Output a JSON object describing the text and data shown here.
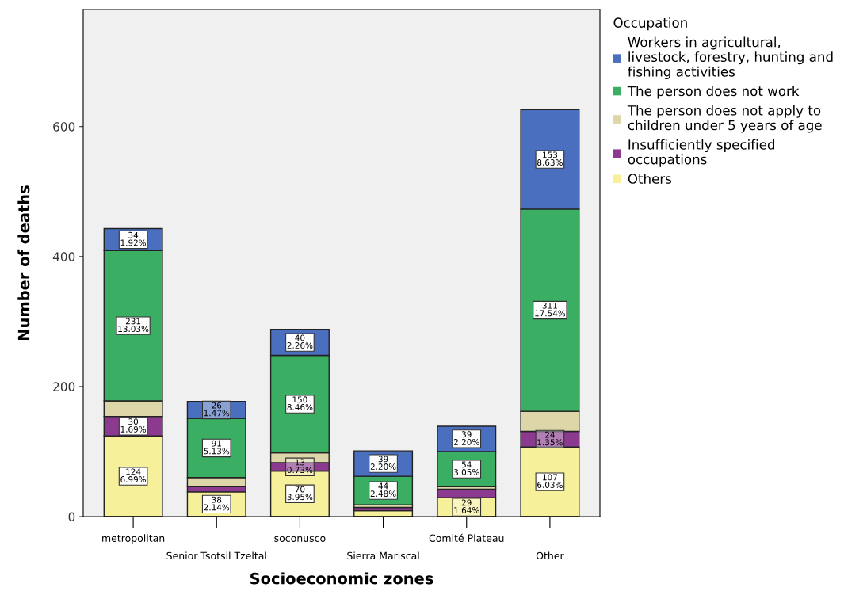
{
  "chart_data": {
    "type": "bar",
    "stacked": true,
    "xlabel": "Socioeconomic zones",
    "ylabel": "Number of deaths",
    "legend_title": "Occupation",
    "legend": "right",
    "categories": [
      "metropolitan",
      "Senior Tsotsil Tzeltal",
      "soconusco",
      "Sierra Mariscal",
      "Comité Plateau",
      "Other"
    ],
    "ylim": [
      0,
      780
    ],
    "yticks": [
      0,
      200,
      400,
      600
    ],
    "grid": false,
    "series": [
      {
        "name": "Others",
        "color": "#f7f09b",
        "values": [
          124,
          38,
          70,
          9,
          29,
          107
        ],
        "value_labels": [
          "124\n6.99%",
          "38\n2.14%",
          "70\n3.95%",
          null,
          "29\n1.64%",
          "107\n6.03%"
        ]
      },
      {
        "name": "Insufficiently specified\noccupations",
        "color": "#8b3a8f",
        "values": [
          30,
          8,
          13,
          5,
          13,
          24
        ],
        "value_labels": [
          "30\n1.69%",
          null,
          "13\n0.73%",
          null,
          null,
          "24\n1.35%"
        ]
      },
      {
        "name": "The person does not apply to\nchildren under 5 years of age",
        "color": "#ddd6a8",
        "values": [
          24,
          14,
          15,
          4,
          4,
          31
        ],
        "value_labels": [
          null,
          null,
          null,
          null,
          null,
          null
        ]
      },
      {
        "name": "The person does not work",
        "color": "#3aae63",
        "values": [
          231,
          91,
          150,
          44,
          54,
          311
        ],
        "value_labels": [
          "231\n13.03%",
          "91\n5.13%",
          "150\n8.46%",
          "44\n2.48%",
          "54\n3.05%",
          "311\n17.54%"
        ]
      },
      {
        "name": "Workers in agricultural,\nlivestock, forestry, hunting and\nfishing activities",
        "color": "#4a6fbf",
        "values": [
          34,
          26,
          40,
          39,
          39,
          153
        ],
        "value_labels": [
          "34\n1.92%",
          "26\n1.47%",
          "40\n2.26%",
          "39\n2.20%",
          "39\n2.20%",
          "153\n8.63%"
        ]
      }
    ]
  }
}
